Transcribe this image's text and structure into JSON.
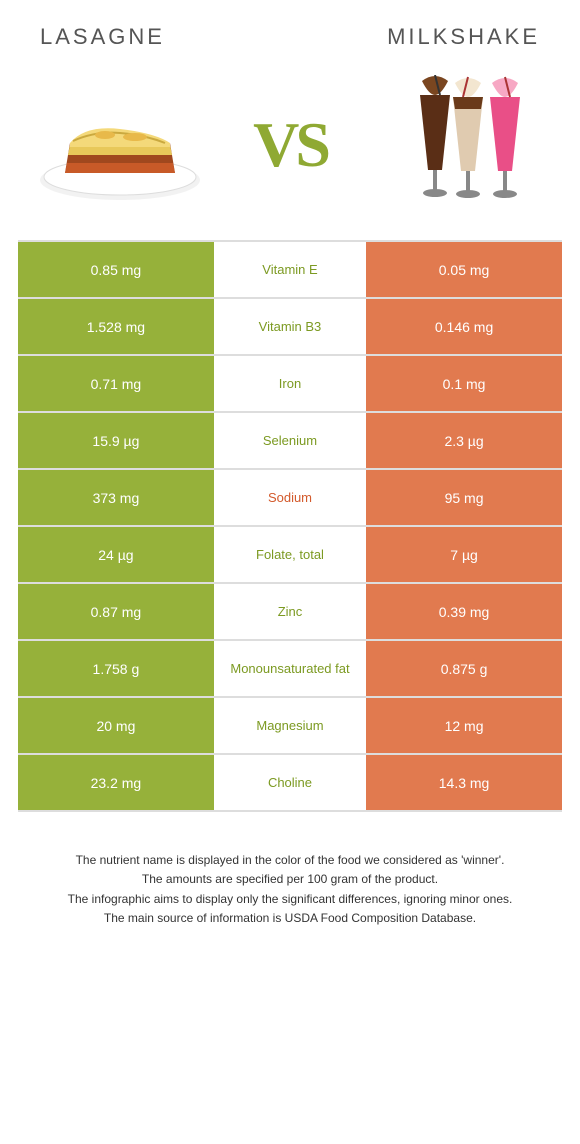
{
  "colors": {
    "left": "#96b13a",
    "right": "#e17a4f",
    "middle_text_green": "#7c9a22",
    "middle_text_orange": "#d35a2c",
    "grid_border": "#dddddd",
    "title_color": "#555555",
    "vs_color": "#8fa933",
    "background": "#ffffff"
  },
  "header": {
    "left": "Lasagne",
    "right": "Milkshake"
  },
  "vs_label": "VS",
  "rows": [
    {
      "left": "0.85 mg",
      "label": "Vitamin E",
      "right": "0.05 mg",
      "winner": "left"
    },
    {
      "left": "1.528 mg",
      "label": "Vitamin B3",
      "right": "0.146 mg",
      "winner": "left"
    },
    {
      "left": "0.71 mg",
      "label": "Iron",
      "right": "0.1 mg",
      "winner": "left"
    },
    {
      "left": "15.9 µg",
      "label": "Selenium",
      "right": "2.3 µg",
      "winner": "left"
    },
    {
      "left": "373 mg",
      "label": "Sodium",
      "right": "95 mg",
      "winner": "right"
    },
    {
      "left": "24 µg",
      "label": "Folate, total",
      "right": "7 µg",
      "winner": "left"
    },
    {
      "left": "0.87 mg",
      "label": "Zinc",
      "right": "0.39 mg",
      "winner": "left"
    },
    {
      "left": "1.758 g",
      "label": "Monounsaturated fat",
      "right": "0.875 g",
      "winner": "left"
    },
    {
      "left": "20 mg",
      "label": "Magnesium",
      "right": "12 mg",
      "winner": "left"
    },
    {
      "left": "23.2 mg",
      "label": "Choline",
      "right": "14.3 mg",
      "winner": "left"
    }
  ],
  "footnotes": [
    "The nutrient name is displayed in the color of the food we considered as 'winner'.",
    "The amounts are specified per 100 gram of the product.",
    "The infographic aims to display only the significant differences, ignoring minor ones.",
    "The main source of information is USDA Food Composition Database."
  ]
}
